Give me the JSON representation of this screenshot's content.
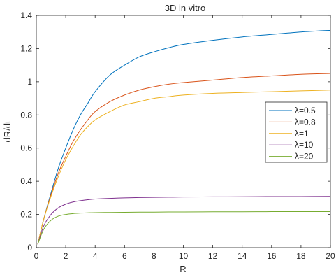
{
  "chart_data": {
    "type": "line",
    "title": "3D in vitro",
    "xlabel": "R",
    "ylabel": "dR/dt",
    "xlim": [
      0,
      20
    ],
    "ylim": [
      0,
      1.4
    ],
    "x_ticks": [
      0,
      2,
      4,
      6,
      8,
      10,
      12,
      14,
      16,
      18,
      20
    ],
    "y_ticks": [
      0,
      0.2,
      0.4,
      0.6,
      0.8,
      1,
      1.2,
      1.4
    ],
    "grid": false,
    "legend_position": "right",
    "x": [
      0.1,
      0.5,
      1,
      1.5,
      2,
      2.5,
      3,
      3.5,
      4,
      5,
      6,
      7,
      8,
      9,
      10,
      12,
      14,
      16,
      18,
      20
    ],
    "series": [
      {
        "name": "λ=0.5",
        "color": "#0072BD",
        "values": [
          0.02,
          0.17,
          0.33,
          0.48,
          0.6,
          0.71,
          0.8,
          0.87,
          0.94,
          1.04,
          1.1,
          1.15,
          1.18,
          1.205,
          1.225,
          1.25,
          1.27,
          1.285,
          1.3,
          1.31
        ]
      },
      {
        "name": "λ=0.8",
        "color": "#D95319",
        "values": [
          0.02,
          0.17,
          0.32,
          0.45,
          0.55,
          0.64,
          0.71,
          0.77,
          0.82,
          0.88,
          0.92,
          0.95,
          0.97,
          0.985,
          0.995,
          1.01,
          1.025,
          1.035,
          1.045,
          1.05
        ]
      },
      {
        "name": "λ=1",
        "color": "#EDB120",
        "values": [
          0.02,
          0.17,
          0.31,
          0.43,
          0.53,
          0.61,
          0.68,
          0.73,
          0.77,
          0.82,
          0.86,
          0.88,
          0.9,
          0.91,
          0.92,
          0.93,
          0.935,
          0.94,
          0.945,
          0.95
        ]
      },
      {
        "name": "λ=10",
        "color": "#7E2F8E",
        "values": [
          0.02,
          0.13,
          0.2,
          0.24,
          0.262,
          0.275,
          0.283,
          0.289,
          0.293,
          0.297,
          0.3,
          0.302,
          0.303,
          0.304,
          0.305,
          0.306,
          0.307,
          0.308,
          0.308,
          0.309
        ]
      },
      {
        "name": "λ=20",
        "color": "#77AC30",
        "values": [
          0.02,
          0.11,
          0.165,
          0.19,
          0.2,
          0.205,
          0.208,
          0.21,
          0.211,
          0.212,
          0.213,
          0.214,
          0.214,
          0.215,
          0.215,
          0.216,
          0.216,
          0.217,
          0.217,
          0.217
        ]
      }
    ]
  }
}
